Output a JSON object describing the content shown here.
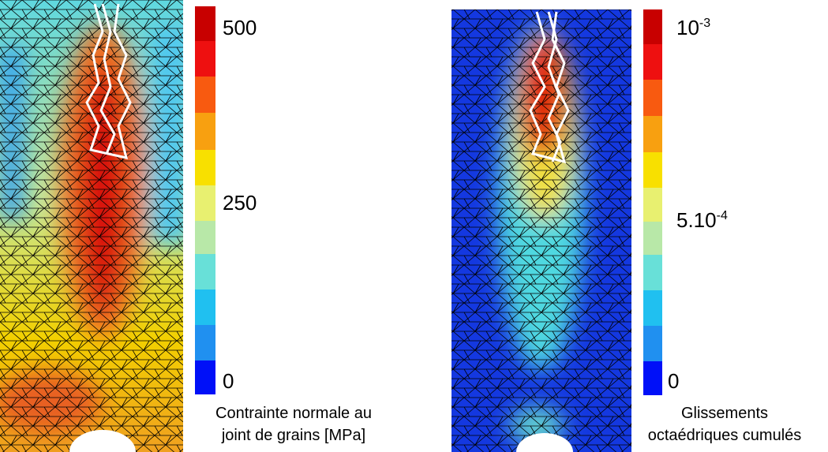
{
  "panels": [
    {
      "colorbar": {
        "top": {
          "base": "500"
        },
        "middle": {
          "base": "250"
        },
        "bottom": {
          "base": "0"
        }
      },
      "caption": [
        "Contrainte normale au",
        "joint de grains [MPa]"
      ]
    },
    {
      "colorbar": {
        "top": {
          "base": "10",
          "sup": "-3"
        },
        "middle": {
          "base": "5.10",
          "sup": "-4"
        },
        "bottom": {
          "base": "0"
        }
      },
      "caption": [
        "Glissements",
        "octaédriques cumulés"
      ]
    }
  ]
}
